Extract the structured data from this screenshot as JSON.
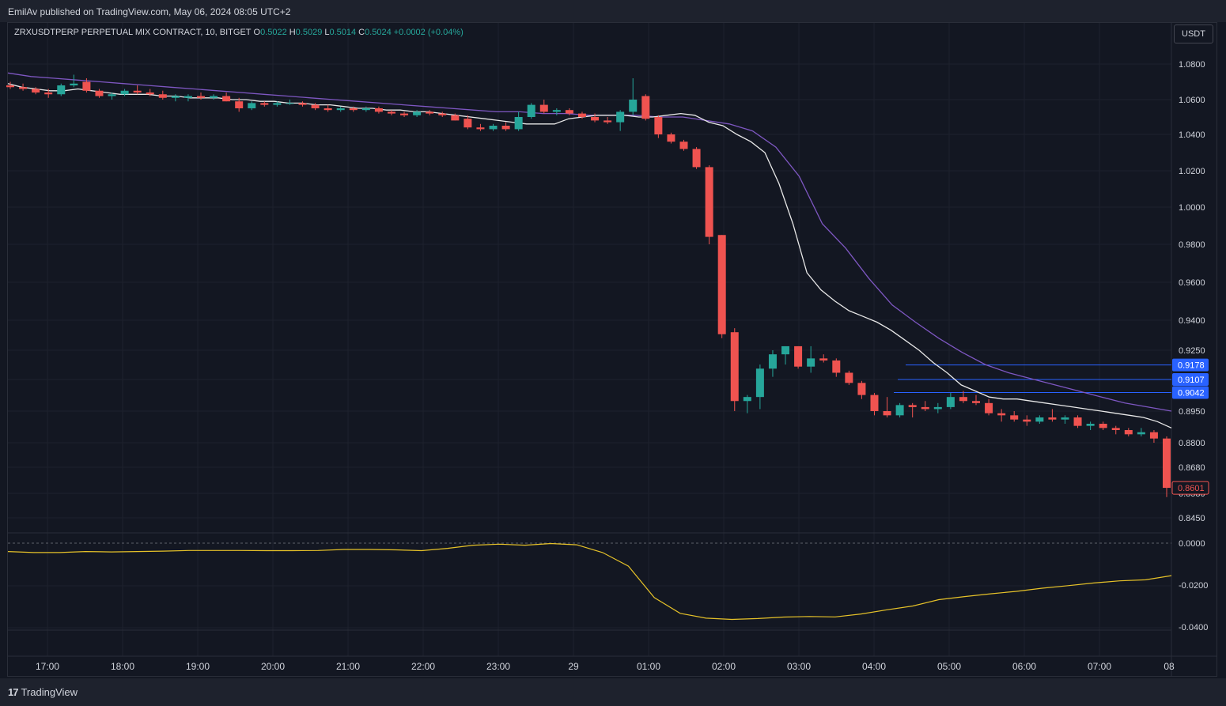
{
  "header": {
    "published": "EmilAv published on TradingView.com, May 06, 2024 08:05 UTC+2"
  },
  "legend": {
    "symbol": "ZRXUSDTPERP PERPETUAL MIX CONTRACT, 10, BITGET",
    "o_label": "O",
    "o_value": "0.5022",
    "h_label": "H",
    "h_value": "0.5029",
    "l_label": "L",
    "l_value": "0.5014",
    "c_label": "C",
    "c_value": "0.5024",
    "change": "+0.0002 (+0.04%)"
  },
  "currency_button": "USDT",
  "footer": {
    "brand": "TradingView",
    "brand_mark": "17"
  },
  "colors": {
    "up": "#26a69a",
    "down": "#ef5350",
    "ema_fast": "#e8e8e8",
    "ema_slow": "#7e57c2",
    "oscillator": "#e6c229",
    "level_line": "#2962ff",
    "tag_blue": "#2962ff",
    "tag_red": "#ef5350"
  },
  "chart_data": [
    {
      "type": "candlestick",
      "price_axis_labels": [
        "1.0800",
        "1.0600",
        "1.0400",
        "1.0200",
        "1.0000",
        "0.9800",
        "0.9600",
        "0.9400",
        "0.9250",
        "0.9107",
        "0.8950",
        "0.8800",
        "0.8680",
        "0.8580",
        "0.8450"
      ],
      "time_axis_labels": [
        "17:00",
        "18:00",
        "19:00",
        "20:00",
        "21:00",
        "22:00",
        "23:00",
        "29",
        "01:00",
        "02:00",
        "03:00",
        "04:00",
        "05:00",
        "06:00",
        "07:00",
        "08"
      ],
      "ylim": [
        0.838,
        1.092
      ],
      "candles": [
        [
          1.068,
          1.07,
          1.066,
          1.067
        ],
        [
          1.067,
          1.069,
          1.065,
          1.066
        ],
        [
          1.066,
          1.067,
          1.063,
          1.064
        ],
        [
          1.064,
          1.066,
          1.061,
          1.063
        ],
        [
          1.063,
          1.069,
          1.062,
          1.068
        ],
        [
          1.068,
          1.074,
          1.067,
          1.069
        ],
        [
          1.07,
          1.072,
          1.064,
          1.065
        ],
        [
          1.065,
          1.066,
          1.061,
          1.062
        ],
        [
          1.062,
          1.064,
          1.06,
          1.063
        ],
        [
          1.063,
          1.066,
          1.062,
          1.065
        ],
        [
          1.065,
          1.068,
          1.063,
          1.064
        ],
        [
          1.064,
          1.066,
          1.062,
          1.063
        ],
        [
          1.063,
          1.065,
          1.06,
          1.061
        ],
        [
          1.061,
          1.063,
          1.059,
          1.062
        ],
        [
          1.061,
          1.063,
          1.059,
          1.062
        ],
        [
          1.062,
          1.064,
          1.06,
          1.061
        ],
        [
          1.061,
          1.063,
          1.06,
          1.062
        ],
        [
          1.062,
          1.064,
          1.059,
          1.059
        ],
        [
          1.059,
          1.061,
          1.053,
          1.055
        ],
        [
          1.055,
          1.059,
          1.054,
          1.058
        ],
        [
          1.058,
          1.059,
          1.056,
          1.057
        ],
        [
          1.057,
          1.059,
          1.056,
          1.058
        ],
        [
          1.058,
          1.06,
          1.057,
          1.058
        ],
        [
          1.058,
          1.059,
          1.056,
          1.057
        ],
        [
          1.057,
          1.058,
          1.054,
          1.055
        ],
        [
          1.055,
          1.057,
          1.053,
          1.054
        ],
        [
          1.054,
          1.056,
          1.053,
          1.055
        ],
        [
          1.055,
          1.056,
          1.053,
          1.054
        ],
        [
          1.054,
          1.056,
          1.053,
          1.055
        ],
        [
          1.055,
          1.056,
          1.052,
          1.053
        ],
        [
          1.053,
          1.054,
          1.051,
          1.052
        ],
        [
          1.052,
          1.053,
          1.05,
          1.051
        ],
        [
          1.051,
          1.054,
          1.05,
          1.053
        ],
        [
          1.053,
          1.054,
          1.051,
          1.052
        ],
        [
          1.052,
          1.053,
          1.05,
          1.051
        ],
        [
          1.051,
          1.052,
          1.048,
          1.048
        ],
        [
          1.049,
          1.051,
          1.043,
          1.044
        ],
        [
          1.044,
          1.046,
          1.042,
          1.043
        ],
        [
          1.043,
          1.046,
          1.042,
          1.045
        ],
        [
          1.045,
          1.047,
          1.042,
          1.043
        ],
        [
          1.043,
          1.053,
          1.042,
          1.05
        ],
        [
          1.05,
          1.058,
          1.049,
          1.057
        ],
        [
          1.057,
          1.06,
          1.052,
          1.053
        ],
        [
          1.053,
          1.055,
          1.051,
          1.054
        ],
        [
          1.054,
          1.055,
          1.051,
          1.052
        ],
        [
          1.052,
          1.053,
          1.049,
          1.05
        ],
        [
          1.05,
          1.052,
          1.047,
          1.048
        ],
        [
          1.048,
          1.05,
          1.046,
          1.047
        ],
        [
          1.047,
          1.054,
          1.042,
          1.053
        ],
        [
          1.053,
          1.072,
          1.051,
          1.06
        ],
        [
          1.062,
          1.063,
          1.048,
          1.049
        ],
        [
          1.05,
          1.051,
          1.038,
          1.04
        ],
        [
          1.04,
          1.041,
          1.035,
          1.036
        ],
        [
          1.036,
          1.037,
          1.031,
          1.032
        ],
        [
          1.032,
          1.033,
          1.021,
          1.022
        ],
        [
          1.022,
          1.023,
          0.98,
          0.984
        ],
        [
          0.985,
          0.985,
          0.931,
          0.933
        ],
        [
          0.934,
          0.936,
          0.895,
          0.9
        ],
        [
          0.9,
          0.903,
          0.894,
          0.902
        ],
        [
          0.902,
          0.918,
          0.896,
          0.916
        ],
        [
          0.916,
          0.925,
          0.912,
          0.923
        ],
        [
          0.923,
          0.927,
          0.918,
          0.927
        ],
        [
          0.927,
          0.927,
          0.916,
          0.917
        ],
        [
          0.917,
          0.927,
          0.914,
          0.921
        ],
        [
          0.921,
          0.923,
          0.919,
          0.92
        ],
        [
          0.92,
          0.921,
          0.912,
          0.914
        ],
        [
          0.914,
          0.915,
          0.908,
          0.909
        ],
        [
          0.909,
          0.91,
          0.901,
          0.903
        ],
        [
          0.903,
          0.904,
          0.893,
          0.895
        ],
        [
          0.895,
          0.902,
          0.892,
          0.893
        ],
        [
          0.893,
          0.899,
          0.892,
          0.898
        ],
        [
          0.898,
          0.899,
          0.892,
          0.897
        ],
        [
          0.897,
          0.9,
          0.895,
          0.896
        ],
        [
          0.896,
          0.899,
          0.894,
          0.897
        ],
        [
          0.897,
          0.904,
          0.896,
          0.902
        ],
        [
          0.902,
          0.905,
          0.899,
          0.9
        ],
        [
          0.9,
          0.903,
          0.898,
          0.899
        ],
        [
          0.899,
          0.901,
          0.893,
          0.894
        ],
        [
          0.894,
          0.896,
          0.89,
          0.893
        ],
        [
          0.893,
          0.895,
          0.89,
          0.891
        ],
        [
          0.891,
          0.893,
          0.888,
          0.89
        ],
        [
          0.89,
          0.893,
          0.889,
          0.892
        ],
        [
          0.892,
          0.896,
          0.89,
          0.891
        ],
        [
          0.891,
          0.893,
          0.889,
          0.892
        ],
        [
          0.892,
          0.893,
          0.887,
          0.888
        ],
        [
          0.888,
          0.89,
          0.886,
          0.889
        ],
        [
          0.889,
          0.89,
          0.886,
          0.887
        ],
        [
          0.887,
          0.888,
          0.884,
          0.886
        ],
        [
          0.886,
          0.887,
          0.883,
          0.884
        ],
        [
          0.884,
          0.887,
          0.883,
          0.885
        ],
        [
          0.885,
          0.886,
          0.88,
          0.882
        ],
        [
          0.882,
          0.883,
          0.856,
          0.8601
        ]
      ],
      "ema_fast": [
        1.069,
        1.067,
        1.066,
        1.065,
        1.065,
        1.066,
        1.065,
        1.064,
        1.063,
        1.063,
        1.063,
        1.062,
        1.062,
        1.061,
        1.061,
        1.061,
        1.06,
        1.06,
        1.059,
        1.059,
        1.058,
        1.058,
        1.057,
        1.057,
        1.056,
        1.055,
        1.055,
        1.054,
        1.054,
        1.053,
        1.053,
        1.052,
        1.051,
        1.05,
        1.049,
        1.048,
        1.047,
        1.046,
        1.046,
        1.046,
        1.049,
        1.05,
        1.051,
        1.051,
        1.051,
        1.05,
        1.05,
        1.051,
        1.052,
        1.051,
        1.047,
        1.045,
        1.04,
        1.036,
        1.03,
        1.013,
        0.991,
        0.965,
        0.956,
        0.95,
        0.945,
        0.942,
        0.939,
        0.935,
        0.93,
        0.925,
        0.919,
        0.914,
        0.908,
        0.905,
        0.902,
        0.901,
        0.901,
        0.9,
        0.899,
        0.898,
        0.897,
        0.896,
        0.895,
        0.894,
        0.893,
        0.892,
        0.89,
        0.887
      ],
      "ema_slow": [
        1.075,
        1.073,
        1.072,
        1.071,
        1.07,
        1.069,
        1.068,
        1.067,
        1.066,
        1.065,
        1.064,
        1.063,
        1.062,
        1.061,
        1.06,
        1.059,
        1.058,
        1.057,
        1.056,
        1.055,
        1.054,
        1.053,
        1.053,
        1.052,
        1.052,
        1.051,
        1.051,
        1.051,
        1.05,
        1.05,
        1.048,
        1.046,
        1.042,
        1.033,
        1.017,
        0.991,
        0.978,
        0.962,
        0.948,
        0.939,
        0.931,
        0.924,
        0.918,
        0.914,
        0.911,
        0.908,
        0.905,
        0.902,
        0.899,
        0.897,
        0.895
      ],
      "levels": [
        0.9178,
        0.9107,
        0.9042
      ],
      "level_tags": [
        "0.9178",
        "0.9107",
        "0.9042"
      ],
      "last_price_tag": "0.8601"
    },
    {
      "type": "line",
      "axis_labels": [
        "0.0000",
        "-0.0200",
        "-0.0400"
      ],
      "ylim": [
        -0.04,
        0.0
      ],
      "values": [
        -0.004,
        -0.0045,
        -0.0045,
        -0.004,
        -0.0042,
        -0.004,
        -0.0038,
        -0.0035,
        -0.0035,
        -0.0035,
        -0.0036,
        -0.0036,
        -0.0035,
        -0.003,
        -0.003,
        -0.0032,
        -0.0036,
        -0.0025,
        -0.001,
        -0.0005,
        -0.001,
        -0.0002,
        -0.0008,
        -0.0045,
        -0.011,
        -0.026,
        -0.0335,
        -0.0358,
        -0.0364,
        -0.036,
        -0.0353,
        -0.035,
        -0.0352,
        -0.0338,
        -0.0318,
        -0.03,
        -0.027,
        -0.0255,
        -0.0242,
        -0.023,
        -0.0215,
        -0.0203,
        -0.019,
        -0.018,
        -0.0175,
        -0.0155
      ]
    }
  ]
}
